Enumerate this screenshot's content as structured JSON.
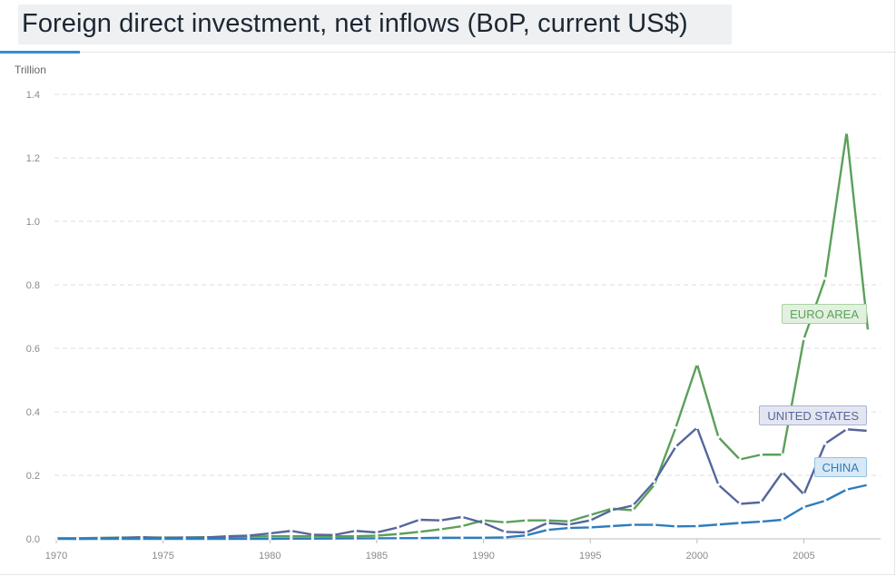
{
  "header": {
    "title": "Foreign direct investment, net inflows (BoP, current US$)"
  },
  "chart_data": {
    "type": "line",
    "unit_label": "Trillion",
    "ylim": [
      0,
      1.4
    ],
    "xlim": [
      1970,
      2008
    ],
    "y_ticks": [
      "0.0",
      "0.2",
      "0.4",
      "0.6",
      "0.8",
      "1.0",
      "1.2",
      "1.4"
    ],
    "x_ticks": [
      "1970",
      "1975",
      "1980",
      "1985",
      "1990",
      "1995",
      "2000",
      "2005"
    ],
    "grid": true,
    "series": [
      {
        "name": "EURO AREA",
        "color": "#5ba05a",
        "label_bg": "#e2f0df",
        "label_border": "#a9d3a2",
        "x": [
          1970,
          1971,
          1972,
          1973,
          1974,
          1975,
          1976,
          1977,
          1978,
          1979,
          1980,
          1981,
          1982,
          1983,
          1984,
          1985,
          1986,
          1987,
          1988,
          1989,
          1990,
          1991,
          1992,
          1993,
          1994,
          1995,
          1996,
          1997,
          1998,
          1999,
          2000,
          2001,
          2002,
          2003,
          2004,
          2005,
          2006,
          2007,
          2008
        ],
        "values": [
          0.002,
          0.002,
          0.003,
          0.004,
          0.004,
          0.004,
          0.004,
          0.005,
          0.006,
          0.007,
          0.008,
          0.008,
          0.008,
          0.008,
          0.008,
          0.01,
          0.015,
          0.022,
          0.03,
          0.04,
          0.058,
          0.052,
          0.058,
          0.058,
          0.055,
          0.075,
          0.095,
          0.09,
          0.17,
          0.35,
          0.55,
          0.32,
          0.25,
          0.265,
          0.265,
          0.63,
          0.82,
          1.28,
          0.655
        ]
      },
      {
        "name": "UNITED STATES",
        "color": "#56669b",
        "label_bg": "#e3e6f1",
        "label_border": "#a9b2d2",
        "x": [
          1970,
          1971,
          1972,
          1973,
          1974,
          1975,
          1976,
          1977,
          1978,
          1979,
          1980,
          1981,
          1982,
          1983,
          1984,
          1985,
          1986,
          1987,
          1988,
          1989,
          1990,
          1991,
          1992,
          1993,
          1994,
          1995,
          1996,
          1997,
          1998,
          1999,
          2000,
          2001,
          2002,
          2003,
          2004,
          2005,
          2006,
          2007,
          2008
        ],
        "values": [
          0.001,
          0.0,
          0.001,
          0.003,
          0.005,
          0.003,
          0.004,
          0.004,
          0.008,
          0.01,
          0.017,
          0.025,
          0.013,
          0.012,
          0.025,
          0.02,
          0.036,
          0.06,
          0.058,
          0.069,
          0.05,
          0.022,
          0.02,
          0.05,
          0.045,
          0.058,
          0.09,
          0.105,
          0.18,
          0.29,
          0.35,
          0.17,
          0.11,
          0.115,
          0.21,
          0.14,
          0.3,
          0.345,
          0.34
        ]
      },
      {
        "name": "CHINA",
        "color": "#2f7cbc",
        "label_bg": "#d7e9f6",
        "label_border": "#96c2e3",
        "x": [
          1970,
          1971,
          1972,
          1973,
          1974,
          1975,
          1976,
          1977,
          1978,
          1979,
          1980,
          1981,
          1982,
          1983,
          1984,
          1985,
          1986,
          1987,
          1988,
          1989,
          1990,
          1991,
          1992,
          1993,
          1994,
          1995,
          1996,
          1997,
          1998,
          1999,
          2000,
          2001,
          2002,
          2003,
          2004,
          2005,
          2006,
          2007,
          2008
        ],
        "values": [
          0,
          0,
          0,
          0,
          0,
          0,
          0,
          0,
          0,
          0,
          0,
          0.0004,
          0.0004,
          0.0009,
          0.0013,
          0.0017,
          0.0019,
          0.0023,
          0.0032,
          0.0034,
          0.0035,
          0.0044,
          0.011,
          0.028,
          0.034,
          0.036,
          0.04,
          0.044,
          0.044,
          0.039,
          0.04,
          0.045,
          0.05,
          0.054,
          0.06,
          0.1,
          0.12,
          0.155,
          0.17
        ]
      }
    ]
  }
}
